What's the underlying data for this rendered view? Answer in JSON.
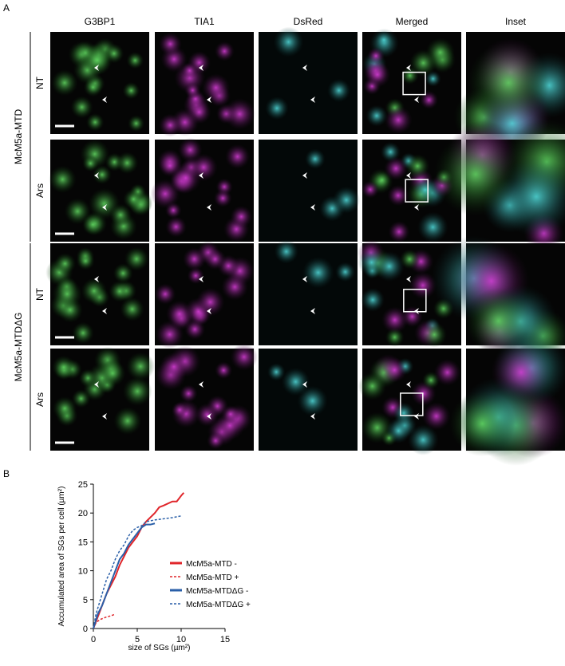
{
  "panel_a": {
    "label": "A",
    "columns": [
      "G3BP1",
      "TIA1",
      "DsRed",
      "Merged",
      "Inset"
    ],
    "groups": [
      {
        "name": "McM5a-MTD",
        "conditions": [
          "NT",
          "Ars"
        ]
      },
      {
        "name": "McM5a-MTDΔG",
        "conditions": [
          "NT",
          "Ars"
        ]
      }
    ]
  },
  "panel_b_label": "B",
  "chart_data": {
    "type": "line",
    "x_label": "size of SGs (µm²)",
    "y_label": "Accumulated area of SGs per cell (µm²)",
    "xlim": [
      0,
      15
    ],
    "xticks": [
      0,
      5,
      10,
      15
    ],
    "ylim": [
      0,
      25
    ],
    "yticks": [
      0,
      5,
      10,
      15,
      20,
      25
    ],
    "grid": false,
    "legend": "right",
    "series": [
      {
        "name": "McM5a-MTD -",
        "color": "#e0262b",
        "dashed": false,
        "x": [
          0,
          0.5,
          1,
          1.5,
          2,
          2.5,
          3,
          3.5,
          4,
          4.5,
          5,
          5.5,
          6,
          7,
          7.5,
          8,
          9,
          9.5,
          10,
          10.3
        ],
        "values": [
          0,
          2,
          4,
          6,
          7.5,
          9,
          11,
          12.5,
          14,
          15,
          16,
          17.5,
          18.5,
          20,
          21,
          21.3,
          22,
          22,
          23,
          23.5
        ]
      },
      {
        "name": "McM5a-MTD +",
        "color": "#e0262b",
        "dashed": true,
        "x": [
          0,
          0.3,
          0.7,
          1,
          1.5,
          2,
          2.5
        ],
        "values": [
          0,
          1,
          1.5,
          1.7,
          2,
          2.2,
          2.5
        ]
      },
      {
        "name": "McM5a-MTDΔG -",
        "color": "#2a5fa8",
        "dashed": false,
        "x": [
          0,
          0.5,
          1,
          1.5,
          2,
          2.5,
          3,
          3.5,
          4,
          4.5,
          5,
          5.5,
          6,
          6.5,
          7
        ],
        "values": [
          0,
          2.5,
          4,
          6,
          8,
          10,
          12,
          13,
          14.5,
          15.5,
          16.5,
          17.5,
          18,
          18,
          18.2
        ]
      },
      {
        "name": "McM5a-MTDΔG +",
        "color": "#2a5fa8",
        "dashed": true,
        "x": [
          0,
          0.3,
          0.7,
          1,
          1.5,
          2,
          2.5,
          3,
          3.5,
          4,
          4.5,
          5,
          5.5,
          6,
          7,
          8,
          9,
          10
        ],
        "values": [
          0,
          2.5,
          4.5,
          6,
          8.5,
          10,
          12,
          13.5,
          14.5,
          16,
          17,
          17.5,
          17.8,
          18.5,
          18.8,
          19,
          19.2,
          19.5
        ]
      }
    ]
  }
}
